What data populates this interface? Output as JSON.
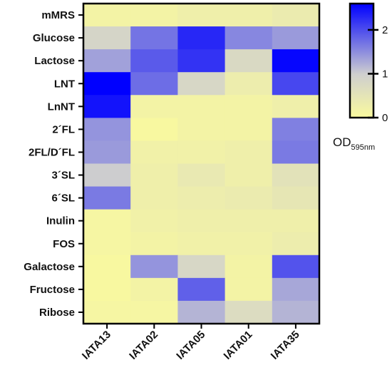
{
  "chart_data": {
    "type": "heatmap",
    "rows": [
      "mMRS",
      "Glucose",
      "Lactose",
      "LNT",
      "LnNT",
      "2´FL",
      "2FL/D´FL",
      "3´SL",
      "6´SL",
      "Inulin",
      "FOS",
      "Galactose",
      "Fructose",
      "Ribose"
    ],
    "columns": [
      "IATA13",
      "IATA02",
      "IATA05",
      "IATA01",
      "IATA35"
    ],
    "values": [
      [
        0.15,
        0.15,
        0.25,
        0.25,
        0.35
      ],
      [
        0.85,
        1.7,
        2.3,
        1.55,
        1.4
      ],
      [
        1.35,
        1.9,
        2.2,
        0.75,
        2.55
      ],
      [
        2.6,
        1.75,
        0.8,
        0.3,
        2.05
      ],
      [
        2.45,
        0.15,
        0.15,
        0.15,
        0.25
      ],
      [
        1.45,
        0.05,
        0.15,
        0.15,
        1.6
      ],
      [
        1.4,
        0.2,
        0.2,
        0.25,
        1.65
      ],
      [
        1.0,
        0.25,
        0.4,
        0.25,
        0.55
      ],
      [
        1.65,
        0.25,
        0.3,
        0.35,
        0.45
      ],
      [
        0.1,
        0.2,
        0.25,
        0.25,
        0.25
      ],
      [
        0.1,
        0.15,
        0.2,
        0.2,
        0.3
      ],
      [
        0.05,
        1.45,
        0.8,
        0.15,
        1.95
      ],
      [
        0.05,
        0.15,
        1.85,
        0.15,
        1.3
      ],
      [
        0.1,
        0.1,
        1.2,
        0.7,
        1.2
      ]
    ],
    "colorbar": {
      "min": 0,
      "max": 2.6,
      "ticks": [
        0,
        1,
        2
      ],
      "tick_labels": [
        "0",
        "1",
        "2"
      ],
      "colors": [
        "#fafa9e",
        "#cfcfcf",
        "#0000ff"
      ],
      "title": "OD",
      "title_subscript": "595nm"
    }
  }
}
